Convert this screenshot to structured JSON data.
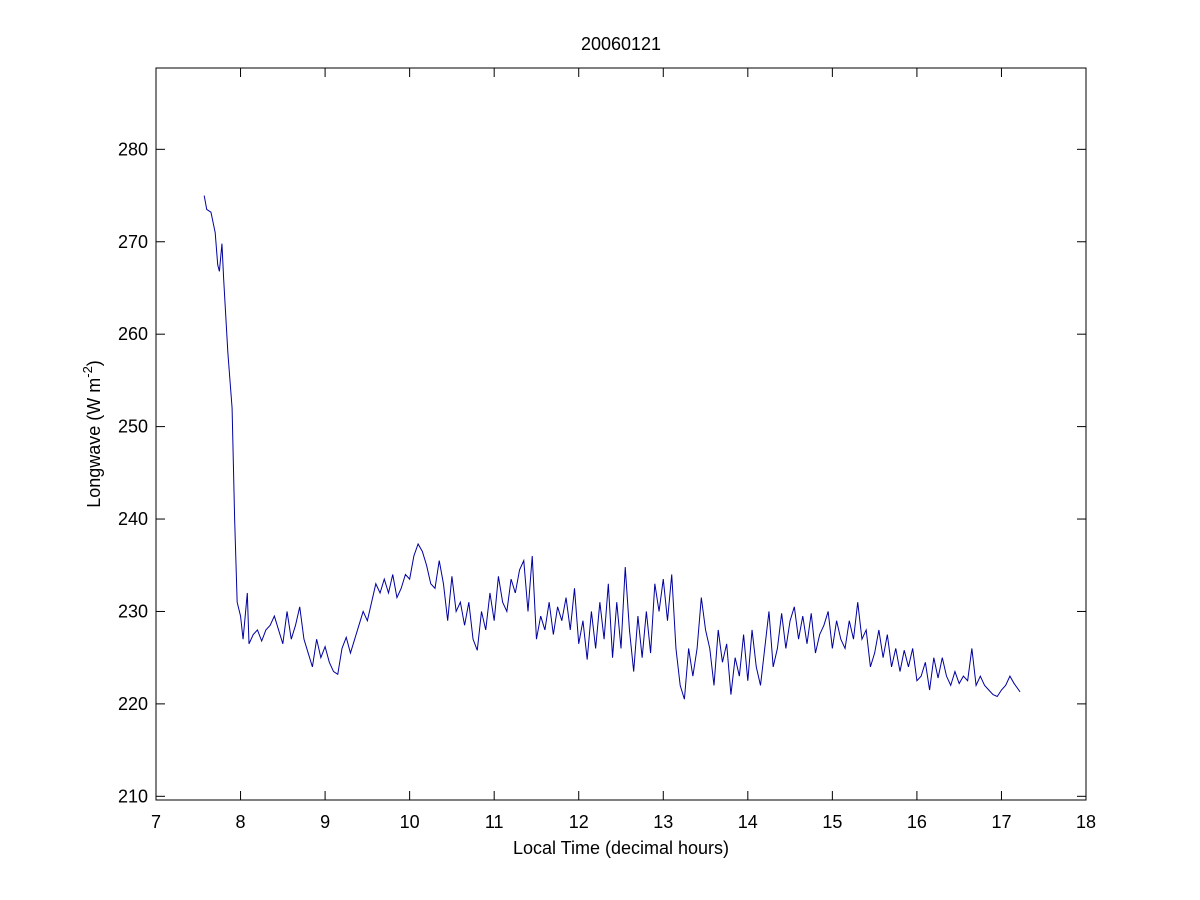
{
  "chart_data": {
    "type": "line",
    "title": "20060121",
    "x_label": "Local Time (decimal hours)",
    "y_label": {
      "text": "Longwave (W m",
      "superscript": "-2",
      "suffix": ")"
    },
    "color": "#0000a0",
    "xlim": [
      7,
      18
    ],
    "xticks": [
      7,
      8,
      9,
      10,
      11,
      12,
      13,
      14,
      15,
      16,
      17,
      18
    ],
    "ylim": [
      209.6,
      288.8
    ],
    "yticks": [
      210,
      220,
      230,
      240,
      250,
      260,
      270,
      280
    ],
    "grid": false,
    "x": [
      7.57,
      7.6,
      7.65,
      7.7,
      7.73,
      7.75,
      7.78,
      7.8,
      7.85,
      7.9,
      7.93,
      7.96,
      8.0,
      8.03,
      8.06,
      8.08,
      8.1,
      8.15,
      8.2,
      8.25,
      8.3,
      8.35,
      8.4,
      8.45,
      8.5,
      8.55,
      8.6,
      8.65,
      8.7,
      8.75,
      8.8,
      8.85,
      8.9,
      8.95,
      9.0,
      9.05,
      9.1,
      9.15,
      9.2,
      9.25,
      9.3,
      9.35,
      9.4,
      9.45,
      9.5,
      9.55,
      9.6,
      9.65,
      9.7,
      9.75,
      9.8,
      9.85,
      9.9,
      9.95,
      10.0,
      10.05,
      10.1,
      10.15,
      10.2,
      10.25,
      10.3,
      10.35,
      10.4,
      10.45,
      10.5,
      10.55,
      10.6,
      10.65,
      10.7,
      10.75,
      10.8,
      10.85,
      10.9,
      10.95,
      11.0,
      11.05,
      11.1,
      11.15,
      11.2,
      11.25,
      11.3,
      11.35,
      11.4,
      11.45,
      11.5,
      11.55,
      11.6,
      11.65,
      11.7,
      11.75,
      11.8,
      11.85,
      11.9,
      11.95,
      12.0,
      12.05,
      12.1,
      12.15,
      12.2,
      12.25,
      12.3,
      12.35,
      12.4,
      12.45,
      12.5,
      12.55,
      12.6,
      12.65,
      12.7,
      12.75,
      12.8,
      12.85,
      12.9,
      12.95,
      13.0,
      13.05,
      13.1,
      13.15,
      13.2,
      13.25,
      13.3,
      13.35,
      13.4,
      13.45,
      13.5,
      13.55,
      13.6,
      13.65,
      13.7,
      13.75,
      13.8,
      13.85,
      13.9,
      13.95,
      14.0,
      14.05,
      14.1,
      14.15,
      14.2,
      14.25,
      14.3,
      14.35,
      14.4,
      14.45,
      14.5,
      14.55,
      14.6,
      14.65,
      14.7,
      14.75,
      14.8,
      14.85,
      14.9,
      14.95,
      15.0,
      15.05,
      15.1,
      15.15,
      15.2,
      15.25,
      15.3,
      15.35,
      15.4,
      15.45,
      15.5,
      15.55,
      15.6,
      15.65,
      15.7,
      15.75,
      15.8,
      15.85,
      15.9,
      15.95,
      16.0,
      16.05,
      16.1,
      16.15,
      16.2,
      16.25,
      16.3,
      16.35,
      16.4,
      16.45,
      16.5,
      16.55,
      16.6,
      16.65,
      16.7,
      16.75,
      16.8,
      16.85,
      16.9,
      16.95,
      17.0,
      17.05,
      17.1,
      17.15,
      17.22
    ],
    "values": [
      275,
      273.5,
      273.2,
      271,
      267.5,
      266.8,
      269.8,
      266,
      258,
      252,
      240,
      231,
      229.5,
      227,
      230,
      232,
      226.5,
      227.5,
      228,
      226.8,
      228,
      228.5,
      229.5,
      228,
      226.5,
      230,
      227,
      228.5,
      230.5,
      227,
      225.5,
      224,
      227,
      225,
      226.2,
      224.5,
      223.5,
      223.2,
      226,
      227.2,
      225.5,
      227,
      228.5,
      230,
      229,
      231,
      233,
      232,
      233.5,
      232,
      234,
      231.5,
      232.5,
      234,
      233.5,
      236,
      237.3,
      236.5,
      235,
      233,
      232.5,
      235.5,
      233,
      229,
      233.8,
      230,
      231,
      228.5,
      231,
      227,
      225.8,
      230,
      228,
      232,
      229,
      233.8,
      231,
      230,
      233.5,
      232,
      234.5,
      235.5,
      230,
      236,
      227,
      229.5,
      228,
      231,
      227.5,
      230.5,
      229,
      231.5,
      228,
      232.5,
      226.5,
      229,
      224.8,
      230,
      226,
      231,
      227,
      233,
      225,
      231,
      226,
      234.8,
      228,
      223.5,
      229.5,
      225,
      230,
      225.5,
      233,
      230,
      233.5,
      229,
      234,
      226,
      222,
      220.5,
      226,
      223,
      226,
      231.5,
      228,
      226,
      222,
      228,
      224.5,
      226.5,
      221,
      225,
      223,
      227.5,
      222.5,
      228,
      224,
      222,
      226,
      230,
      224,
      226,
      229.8,
      226,
      229,
      230.5,
      227,
      229.5,
      226.5,
      229.8,
      225.5,
      227.5,
      228.5,
      230,
      226,
      229,
      227,
      226,
      229,
      227,
      231,
      227,
      228,
      224,
      225.5,
      228,
      225,
      227.5,
      224,
      226,
      223.5,
      225.8,
      224,
      226,
      222.5,
      223,
      224.5,
      221.5,
      225,
      222.8,
      225,
      223,
      222,
      223.5,
      222.2,
      223,
      222.5,
      226,
      222,
      223,
      222,
      221.5,
      221,
      220.8,
      221.5,
      222,
      223,
      222.2,
      221.3
    ]
  }
}
